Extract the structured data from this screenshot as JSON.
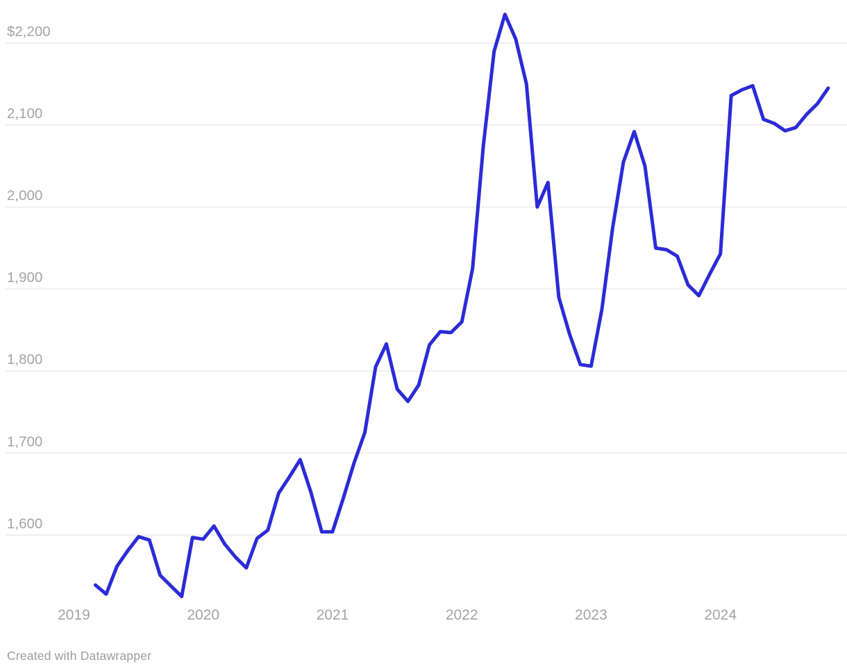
{
  "chart_data": {
    "type": "line",
    "title": "",
    "xlabel": "",
    "ylabel": "",
    "unit": "$",
    "grid": "horizontal",
    "legend": "none",
    "ylim": [
      1500,
      2250
    ],
    "x": [
      "2019-03",
      "2019-04",
      "2019-05",
      "2019-06",
      "2019-07",
      "2019-08",
      "2019-09",
      "2019-10",
      "2019-11",
      "2019-12",
      "2020-01",
      "2020-02",
      "2020-03",
      "2020-04",
      "2020-05",
      "2020-06",
      "2020-07",
      "2020-08",
      "2020-09",
      "2020-10",
      "2020-11",
      "2020-12",
      "2021-01",
      "2021-02",
      "2021-03",
      "2021-04",
      "2021-05",
      "2021-06",
      "2021-07",
      "2021-08",
      "2021-09",
      "2021-10",
      "2021-11",
      "2021-12",
      "2022-01",
      "2022-02",
      "2022-03",
      "2022-04",
      "2022-05",
      "2022-06",
      "2022-07",
      "2022-08",
      "2022-09",
      "2022-10",
      "2022-11",
      "2022-12",
      "2023-01",
      "2023-02",
      "2023-03",
      "2023-04",
      "2023-05",
      "2023-06",
      "2023-07",
      "2023-08",
      "2023-09",
      "2023-10",
      "2023-11",
      "2023-12",
      "2024-01",
      "2024-02",
      "2024-03",
      "2024-04",
      "2024-05",
      "2024-06",
      "2024-07",
      "2024-08",
      "2024-09",
      "2024-10",
      "2024-11"
    ],
    "values": [
      1539,
      1528,
      1562,
      1581,
      1598,
      1594,
      1551,
      1538,
      1525,
      1597,
      1595,
      1611,
      1589,
      1573,
      1560,
      1596,
      1606,
      1651,
      1671,
      1692,
      1652,
      1604,
      1604,
      1645,
      1688,
      1725,
      1805,
      1833,
      1778,
      1763,
      1783,
      1832,
      1848,
      1847,
      1860,
      1925,
      2075,
      2190,
      2235,
      2205,
      2150,
      2000,
      2030,
      1890,
      1845,
      1808,
      1806,
      1875,
      1975,
      2055,
      2092,
      2050,
      1950,
      1948,
      1940,
      1905,
      1892,
      1918,
      1943,
      2136,
      2143,
      2148,
      2107,
      2102,
      2093,
      2097,
      2113,
      2126,
      2145
    ],
    "yticks": [
      {
        "label": "$2,200",
        "value": 2200
      },
      {
        "label": "2,100",
        "value": 2100
      },
      {
        "label": "2,000",
        "value": 2000
      },
      {
        "label": "1,900",
        "value": 1900
      },
      {
        "label": "1,800",
        "value": 1800
      },
      {
        "label": "1,700",
        "value": 1700
      },
      {
        "label": "1,600",
        "value": 1600
      }
    ],
    "xticks": [
      {
        "label": "2019",
        "month": "2019-01"
      },
      {
        "label": "2020",
        "month": "2020-01"
      },
      {
        "label": "2021",
        "month": "2021-01"
      },
      {
        "label": "2022",
        "month": "2022-01"
      },
      {
        "label": "2023",
        "month": "2023-01"
      },
      {
        "label": "2024",
        "month": "2024-01"
      }
    ]
  },
  "colors": {
    "line": "#2b2bd7",
    "grid": "#e8e8e8",
    "tick_label": "#a4a4a4",
    "attribution": "#9b9b9b",
    "background": "#ffffff"
  },
  "footer": {
    "attribution": "Created with Datawrapper"
  }
}
